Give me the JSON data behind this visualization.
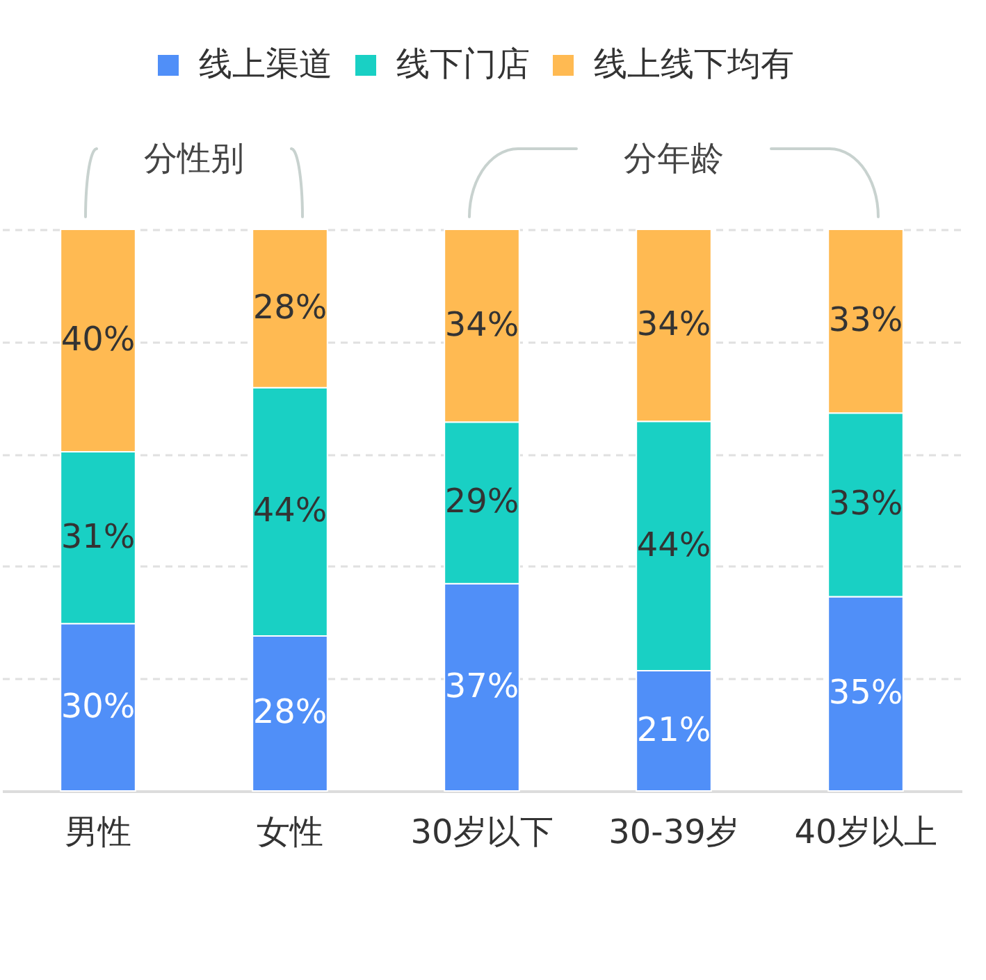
{
  "chart_data": {
    "type": "bar",
    "stacked": true,
    "categories": [
      "男性",
      "女性",
      "30岁以下",
      "30-39岁",
      "40岁以上"
    ],
    "series": [
      {
        "name": "线上渠道",
        "color": "#508ff8",
        "values": [
          29.8,
          27.6,
          36.9,
          21.4,
          34.6
        ],
        "value_labels": [
          "30%",
          "28%",
          "37%",
          "21%",
          "35%"
        ]
      },
      {
        "name": "线下门店",
        "color": "#19d0c4",
        "values": [
          30.6,
          44.2,
          28.8,
          44.4,
          32.7
        ],
        "value_labels": [
          "31%",
          "44%",
          "29%",
          "44%",
          "33%"
        ]
      },
      {
        "name": "线上线下均有",
        "color": "#ffba52",
        "values": [
          39.6,
          28.2,
          34.3,
          34.2,
          32.7
        ],
        "value_labels": [
          "40%",
          "28%",
          "34%",
          "34%",
          "33%"
        ]
      }
    ],
    "ylim": [
      0,
      100
    ],
    "yticks": [
      {
        "value": 0,
        "label": null
      },
      {
        "value": 20,
        "label": null
      },
      {
        "value": 40,
        "label": null
      },
      {
        "value": 60,
        "label": null
      },
      {
        "value": 80,
        "label": null
      },
      {
        "value": 100,
        "label": null
      }
    ],
    "grid": "y",
    "legend": "top",
    "tick_labels": "x",
    "annotations": [
      "分性别",
      "分年龄"
    ]
  }
}
